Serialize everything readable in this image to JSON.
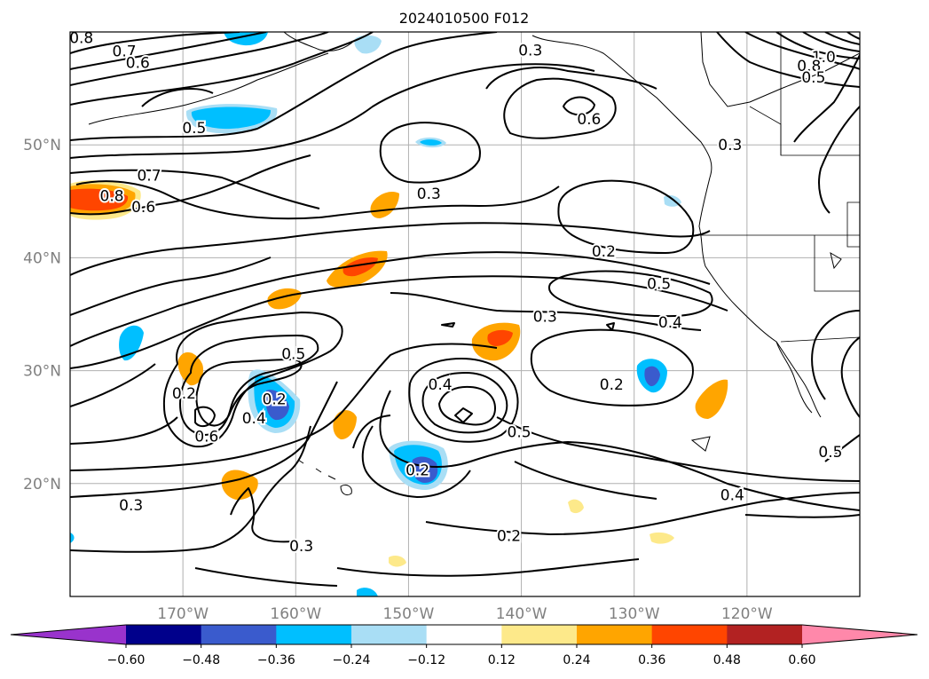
{
  "title": "2024010500 F012",
  "map": {
    "lat_ticks": [
      {
        "lat": 50,
        "label": "50°N"
      },
      {
        "lat": 40,
        "label": "40°N"
      },
      {
        "lat": 30,
        "label": "30°N"
      },
      {
        "lat": 20,
        "label": "20°N"
      }
    ],
    "lon_ticks": [
      {
        "lon": -170,
        "label": "170°W"
      },
      {
        "lon": -160,
        "label": "160°W"
      },
      {
        "lon": -150,
        "label": "150°W"
      },
      {
        "lon": -140,
        "label": "140°W"
      },
      {
        "lon": -130,
        "label": "130°W"
      },
      {
        "lon": -120,
        "label": "120°W"
      }
    ],
    "gridlines": true
  },
  "colorbar": {
    "colors": [
      "#9933cc",
      "#00008b",
      "#3a5bcd",
      "#00bfff",
      "#a9def5",
      "#ffffff",
      "#fde98a",
      "#ffa500",
      "#ff4500",
      "#b22222",
      "#ff88aa"
    ],
    "tick_labels": [
      "−0.60",
      "−0.48",
      "−0.36",
      "−0.24",
      "−0.12",
      "0.12",
      "0.24",
      "0.36",
      "0.48",
      "0.60"
    ],
    "extend": "both"
  },
  "contour_labels": [
    {
      "text": "0.8",
      "lat": 59.5,
      "lon": -179
    },
    {
      "text": "0.7",
      "lat": 58.3,
      "lon": -175.2
    },
    {
      "text": "0.6",
      "lat": 57.3,
      "lon": -174
    },
    {
      "text": "0.5",
      "lat": 51.5,
      "lon": -169
    },
    {
      "text": "0.3",
      "lat": 58.4,
      "lon": -139.2
    },
    {
      "text": "0.6",
      "lat": 52.3,
      "lon": -134
    },
    {
      "text": "0.3",
      "lat": 50,
      "lon": -121.5
    },
    {
      "text": "0.8",
      "lat": 45.5,
      "lon": -176.3
    },
    {
      "text": "0.7",
      "lat": 47.3,
      "lon": -173
    },
    {
      "text": "0.6",
      "lat": 44.5,
      "lon": -173.5
    },
    {
      "text": "0.3",
      "lat": 45.7,
      "lon": -148.2
    },
    {
      "text": "0.2",
      "lat": 40.6,
      "lon": -132.7
    },
    {
      "text": "0.5",
      "lat": 37.7,
      "lon": -127.8
    },
    {
      "text": "0.3",
      "lat": 34.8,
      "lon": -137.9
    },
    {
      "text": "0.4",
      "lat": 34.3,
      "lon": -126.8
    },
    {
      "text": "0.5",
      "lat": 31.5,
      "lon": -160.2
    },
    {
      "text": "0.2",
      "lat": 28,
      "lon": -169.9
    },
    {
      "text": "0.4",
      "lat": 28.8,
      "lon": -147.2
    },
    {
      "text": "0.2",
      "lat": 27.5,
      "lon": -161.9
    },
    {
      "text": "0.4",
      "lat": 25.8,
      "lon": -163.7
    },
    {
      "text": "0.6",
      "lat": 24.2,
      "lon": -167.9
    },
    {
      "text": "0.5",
      "lat": 24.6,
      "lon": -140.2
    },
    {
      "text": "0.2",
      "lat": 28.8,
      "lon": -132
    },
    {
      "text": "0.2",
      "lat": 21.2,
      "lon": -149.2
    },
    {
      "text": "0.4",
      "lat": 19,
      "lon": -121.3
    },
    {
      "text": "0.3",
      "lat": 18.1,
      "lon": -174.6
    },
    {
      "text": "0.2",
      "lat": 15.4,
      "lon": -141.1
    },
    {
      "text": "0.3",
      "lat": 14.5,
      "lon": -159.5
    },
    {
      "text": "0.5",
      "lat": 22.8,
      "lon": -112.6
    },
    {
      "text": "1.0",
      "lat": 57.8,
      "lon": -113.2
    },
    {
      "text": "0.8",
      "lat": 57,
      "lon": -114.5
    },
    {
      "text": "0.5",
      "lat": 56,
      "lon": -114.1
    }
  ]
}
